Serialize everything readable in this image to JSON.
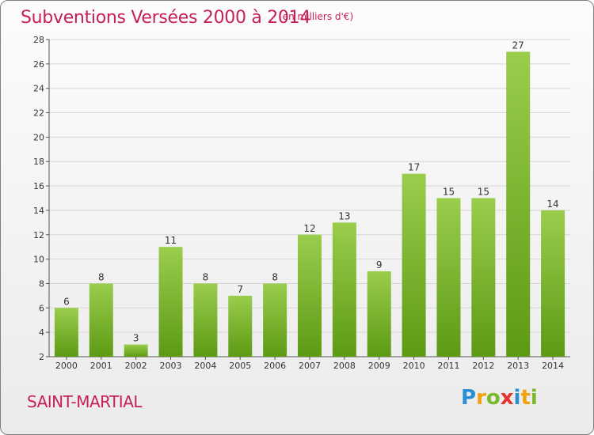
{
  "header": {
    "title": "Subventions Versées 2000 à 2014",
    "subtitle": "(en milliers d'€)"
  },
  "footer": {
    "commune": "SAINT-MARTIAL",
    "logo_text": "Proxiti"
  },
  "chart_data": {
    "type": "bar",
    "categories": [
      "2000",
      "2001",
      "2002",
      "2003",
      "2004",
      "2005",
      "2006",
      "2007",
      "2008",
      "2009",
      "2010",
      "2011",
      "2012",
      "2013",
      "2014"
    ],
    "values": [
      6,
      8,
      3,
      11,
      8,
      7,
      8,
      12,
      13,
      9,
      17,
      15,
      15,
      27,
      14
    ],
    "ylim": [
      2,
      28
    ],
    "yticks": [
      2,
      4,
      6,
      8,
      10,
      12,
      14,
      16,
      18,
      20,
      22,
      24,
      26,
      28
    ],
    "grid": true,
    "colors": {
      "bar_top": "#9acd4c",
      "bar_bottom": "#5d9a14",
      "text": "#c61f5b"
    }
  }
}
